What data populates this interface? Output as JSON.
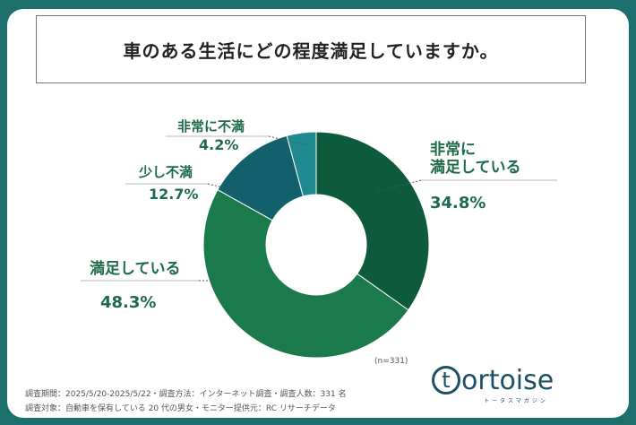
{
  "title": "車のある生活にどの程度満足していますか。",
  "chart_data": {
    "type": "pie",
    "donut": true,
    "categories": [
      "非常に満足している",
      "満足している",
      "少し不満",
      "非常に不満"
    ],
    "values": [
      34.8,
      48.3,
      12.7,
      4.2
    ],
    "colors": [
      "#0e5a3c",
      "#1a7a4c",
      "#11606c",
      "#1f8a90"
    ],
    "labels": [
      {
        "lines": [
          "非常に",
          "満足している"
        ],
        "pct": "34.8%"
      },
      {
        "lines": [
          "満足している"
        ],
        "pct": "48.3%"
      },
      {
        "lines": [
          "少し不満"
        ],
        "pct": "12.7%"
      },
      {
        "lines": [
          "非常に不満"
        ],
        "pct": "4.2%"
      }
    ],
    "n_label": "(n=331)"
  },
  "footer": {
    "line1": "調査期間：2025/5/20-2025/5/22・調査方法：インターネット調査・調査人数：331 名",
    "line2": "調査対象：自動車を保有している 20 代の男女・モニター提供元：RC リサーチデータ"
  },
  "logo": {
    "t": "t",
    "rest": "ortoise",
    "sub": "トータスマガジン"
  }
}
